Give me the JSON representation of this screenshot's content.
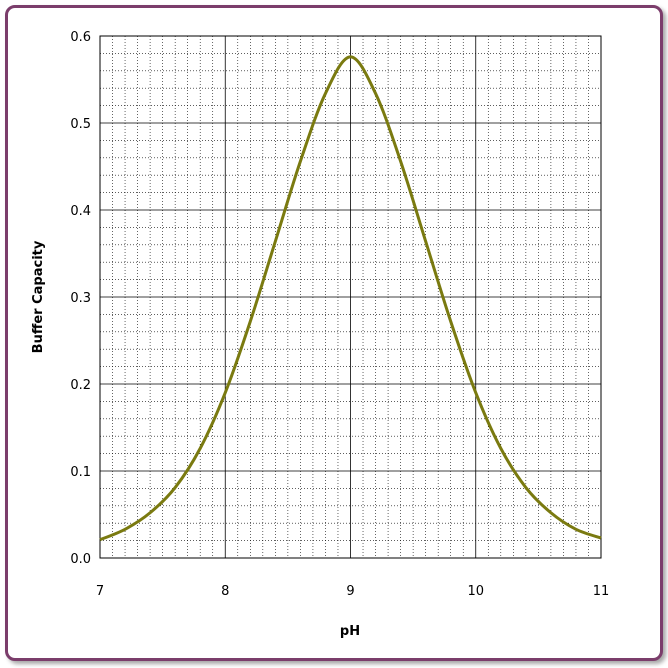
{
  "chart_data": {
    "type": "line",
    "xlabel": "pH",
    "ylabel": "Buffer Capacity",
    "xlim": [
      7,
      11
    ],
    "ylim": [
      0.0,
      0.6
    ],
    "x_ticks": [
      "7",
      "8",
      "9",
      "10",
      "11"
    ],
    "y_ticks": [
      "0.0",
      "0.1",
      "0.2",
      "0.3",
      "0.4",
      "0.5",
      "0.6"
    ],
    "grid": true,
    "legend": "none",
    "series": [
      {
        "color": "#7a7a10",
        "x": [
          7.0,
          7.2,
          7.4,
          7.6,
          7.8,
          8.0,
          8.2,
          8.4,
          8.6,
          8.8,
          9.0,
          9.2,
          9.4,
          9.6,
          9.8,
          10.0,
          10.2,
          10.4,
          10.6,
          10.8,
          11.0
        ],
        "y": [
          0.021,
          0.033,
          0.052,
          0.081,
          0.126,
          0.19,
          0.272,
          0.364,
          0.456,
          0.534,
          0.576,
          0.534,
          0.456,
          0.364,
          0.272,
          0.19,
          0.126,
          0.081,
          0.052,
          0.033,
          0.023
        ]
      }
    ]
  },
  "colors": {
    "frame": "#7b3d6b",
    "curve": "#7a7a10",
    "grid_major": "#000000",
    "grid_minor": "#000000"
  }
}
